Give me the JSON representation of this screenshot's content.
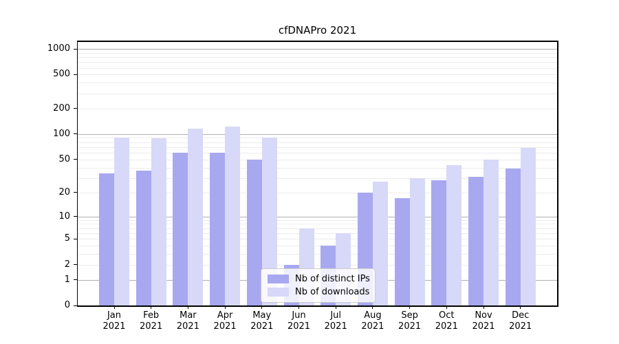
{
  "title": "cfDNAPro 2021",
  "legend": {
    "position": "lower center",
    "items": [
      {
        "label": "Nb of distinct IPs",
        "color": "#a8a8f0"
      },
      {
        "label": "Nb of downloads",
        "color": "#d8d8f8"
      }
    ]
  },
  "colors": {
    "distinct_ips_bar": "#a8a8f0",
    "downloads_bar": "#d8d8f8",
    "major_gridline": "#b0b0b0",
    "minor_gridline": "#ececec"
  },
  "chart_data": {
    "type": "bar",
    "title": "cfDNAPro 2021",
    "categories": [
      "Jan 2021",
      "Feb 2021",
      "Mar 2021",
      "Apr 2021",
      "May 2021",
      "Jun 2021",
      "Jul 2021",
      "Aug 2021",
      "Sep 2021",
      "Oct 2021",
      "Nov 2021",
      "Dec 2021"
    ],
    "series": [
      {
        "name": "Nb of distinct IPs",
        "color": "#a8a8f0",
        "values": [
          34,
          37,
          60,
          60,
          50,
          2,
          4,
          20,
          17,
          28,
          31,
          39
        ]
      },
      {
        "name": "Nb of downloads",
        "color": "#d8d8f8",
        "values": [
          90,
          89,
          116,
          122,
          90,
          7,
          6,
          27,
          30,
          43,
          50,
          69
        ]
      }
    ],
    "xlabel": "",
    "ylabel": "",
    "yscale": "log1p",
    "ylim": [
      0,
      1250
    ],
    "yticks_labeled": [
      0,
      1,
      2,
      5,
      10,
      20,
      50,
      100,
      200,
      500,
      1000
    ],
    "gridlines": {
      "major": [
        1,
        10,
        100,
        1000
      ],
      "minor": [
        2,
        3,
        4,
        5,
        6,
        7,
        8,
        9,
        20,
        30,
        40,
        50,
        60,
        70,
        80,
        90,
        200,
        300,
        400,
        500,
        600,
        700,
        800,
        900
      ]
    },
    "grid": true,
    "legend_position": "lower center"
  }
}
